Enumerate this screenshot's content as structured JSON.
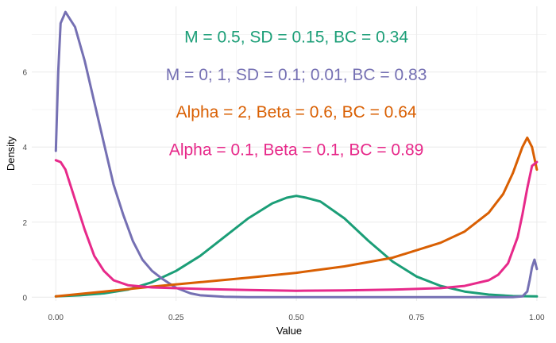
{
  "chart_data": {
    "type": "line",
    "xlabel": "Value",
    "ylabel": "Density",
    "xlim": [
      -0.05,
      1.02
    ],
    "ylim": [
      -0.1,
      7.75
    ],
    "grid": true,
    "x_ticks": [
      0,
      0.25,
      0.5,
      0.75,
      1
    ],
    "x_tick_labels": [
      "0.00",
      "0.25",
      "0.50",
      "0.75",
      "1.00"
    ],
    "y_ticks": [
      0,
      2,
      4,
      6
    ],
    "y_tick_labels": [
      "0",
      "2",
      "4",
      "6"
    ],
    "annotations": [
      {
        "text": "M = 0.5, SD = 0.15, BC = 0.34",
        "color": "#1b9e77",
        "x": 0.5,
        "y": 6.9
      },
      {
        "text": "M = 0; 1, SD = 0.1; 0.01, BC = 0.83",
        "color": "#7570b3",
        "x": 0.5,
        "y": 5.9
      },
      {
        "text": "Alpha = 2, Beta = 0.6, BC = 0.64",
        "color": "#d95f02",
        "x": 0.5,
        "y": 4.9
      },
      {
        "text": "Alpha = 0.1, Beta = 0.1, BC = 0.89",
        "color": "#e7298a",
        "x": 0.5,
        "y": 3.9
      }
    ],
    "series": [
      {
        "color": "#1b9e77",
        "x": [
          0,
          0.05,
          0.1,
          0.15,
          0.2,
          0.25,
          0.3,
          0.35,
          0.4,
          0.45,
          0.48,
          0.5,
          0.52,
          0.55,
          0.6,
          0.65,
          0.7,
          0.75,
          0.8,
          0.85,
          0.9,
          0.95,
          1.0
        ],
        "y": [
          0.02,
          0.05,
          0.1,
          0.2,
          0.4,
          0.7,
          1.1,
          1.6,
          2.1,
          2.5,
          2.65,
          2.7,
          2.65,
          2.55,
          2.1,
          1.5,
          0.95,
          0.55,
          0.3,
          0.15,
          0.07,
          0.03,
          0.02
        ]
      },
      {
        "color": "#7570b3",
        "x": [
          0.0,
          0.005,
          0.01,
          0.02,
          0.03,
          0.04,
          0.06,
          0.08,
          0.1,
          0.12,
          0.14,
          0.16,
          0.18,
          0.2,
          0.22,
          0.25,
          0.28,
          0.3,
          0.35,
          0.4,
          0.5,
          0.6,
          0.7,
          0.8,
          0.9,
          0.95,
          0.97,
          0.98,
          0.985,
          0.99,
          0.995,
          1.0
        ],
        "y": [
          3.9,
          6.0,
          7.3,
          7.6,
          7.4,
          7.2,
          6.3,
          5.2,
          4.1,
          3.0,
          2.2,
          1.5,
          1.0,
          0.7,
          0.5,
          0.25,
          0.1,
          0.05,
          0.01,
          0.0,
          0.0,
          0.0,
          0.0,
          0.0,
          0.0,
          0.0,
          0.02,
          0.15,
          0.45,
          0.8,
          1.0,
          0.75
        ]
      },
      {
        "color": "#d95f02",
        "x": [
          0,
          0.1,
          0.2,
          0.3,
          0.4,
          0.5,
          0.6,
          0.7,
          0.8,
          0.85,
          0.9,
          0.93,
          0.95,
          0.97,
          0.98,
          0.99,
          1.0
        ],
        "y": [
          0.02,
          0.15,
          0.28,
          0.4,
          0.52,
          0.65,
          0.82,
          1.05,
          1.45,
          1.75,
          2.25,
          2.75,
          3.3,
          4.0,
          4.25,
          4.0,
          3.4
        ]
      },
      {
        "color": "#e7298a",
        "x": [
          0,
          0.01,
          0.02,
          0.04,
          0.06,
          0.08,
          0.1,
          0.12,
          0.15,
          0.2,
          0.3,
          0.4,
          0.5,
          0.6,
          0.7,
          0.8,
          0.85,
          0.9,
          0.92,
          0.94,
          0.96,
          0.97,
          0.98,
          0.99,
          1.0
        ],
        "y": [
          3.65,
          3.6,
          3.4,
          2.6,
          1.8,
          1.1,
          0.7,
          0.45,
          0.32,
          0.26,
          0.22,
          0.19,
          0.17,
          0.18,
          0.2,
          0.24,
          0.3,
          0.45,
          0.6,
          0.9,
          1.6,
          2.2,
          2.9,
          3.5,
          3.6
        ]
      }
    ]
  }
}
